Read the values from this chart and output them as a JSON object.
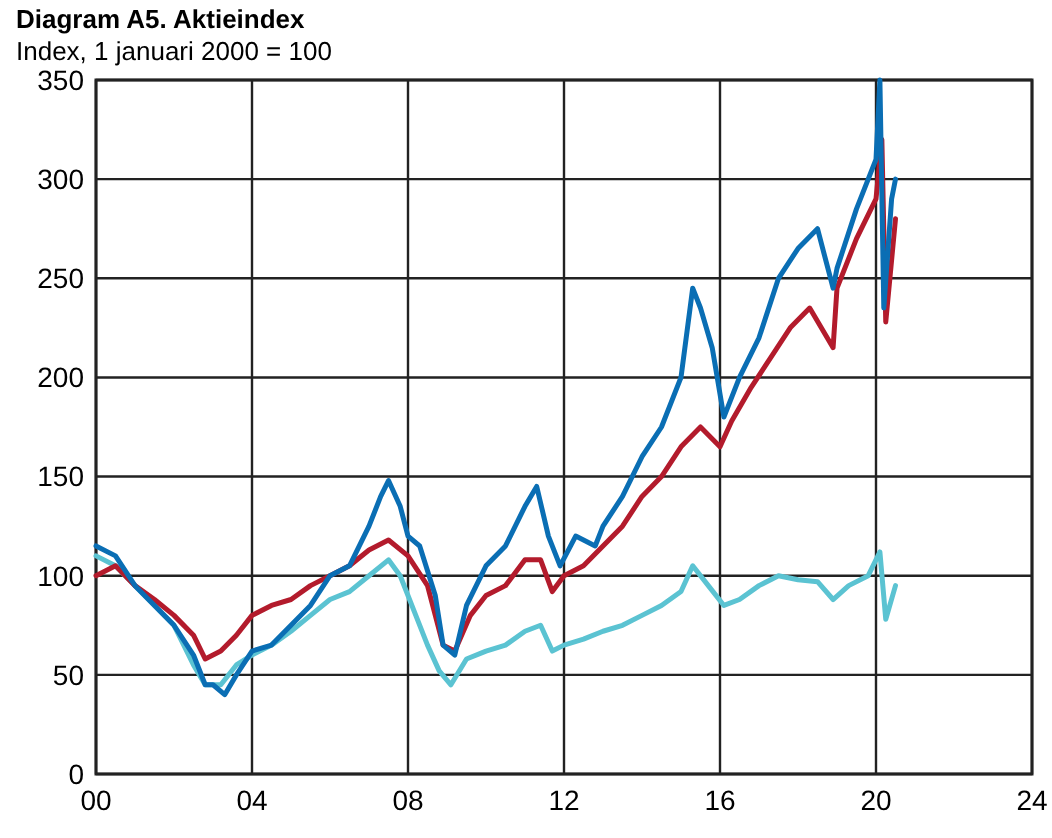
{
  "chart_data": {
    "type": "line",
    "title": "Diagram A5. Aktieindex",
    "subtitle": "Index, 1 januari 2000 = 100",
    "xlim": [
      0,
      24
    ],
    "xticks": [
      {
        "value": 0,
        "label": "00"
      },
      {
        "value": 4,
        "label": "04"
      },
      {
        "value": 8,
        "label": "08"
      },
      {
        "value": 12,
        "label": "12"
      },
      {
        "value": 16,
        "label": "16"
      },
      {
        "value": 20,
        "label": "20"
      },
      {
        "value": 24,
        "label": "24"
      }
    ],
    "ylim": [
      0,
      350
    ],
    "yticks": [
      0,
      50,
      100,
      150,
      200,
      250,
      300,
      350
    ],
    "grid": true,
    "series": [
      {
        "color": "#5bc3d2",
        "x": [
          0,
          0.5,
          1,
          1.5,
          2,
          2.5,
          2.8,
          3.2,
          3.6,
          4,
          4.5,
          5,
          5.5,
          6,
          6.5,
          7,
          7.5,
          7.8,
          8.2,
          8.5,
          8.8,
          9.1,
          9.5,
          10,
          10.5,
          11,
          11.4,
          11.7,
          12,
          12.5,
          13,
          13.5,
          14,
          14.5,
          15,
          15.3,
          15.7,
          16.1,
          16.5,
          17,
          17.5,
          18,
          18.5,
          18.9,
          19.3,
          19.8,
          20.1,
          20.25,
          20.5
        ],
        "values": [
          110,
          105,
          95,
          85,
          75,
          55,
          45,
          45,
          55,
          60,
          65,
          72,
          80,
          88,
          92,
          100,
          108,
          100,
          80,
          65,
          52,
          45,
          58,
          62,
          65,
          72,
          75,
          62,
          65,
          68,
          72,
          75,
          80,
          85,
          92,
          105,
          95,
          85,
          88,
          95,
          100,
          98,
          97,
          88,
          95,
          100,
          112,
          78,
          95
        ]
      },
      {
        "color": "#b31b2c",
        "x": [
          0,
          0.5,
          1,
          1.5,
          2,
          2.5,
          2.8,
          3.2,
          3.6,
          4,
          4.5,
          5,
          5.5,
          6,
          6.5,
          7,
          7.5,
          8,
          8.5,
          8.9,
          9.2,
          9.6,
          10,
          10.5,
          11,
          11.4,
          11.7,
          12,
          12.5,
          13,
          13.5,
          14,
          14.5,
          15,
          15.5,
          16,
          16.3,
          16.8,
          17.3,
          17.8,
          18.3,
          18.9,
          19,
          19.5,
          20,
          20.15,
          20.25,
          20.5
        ],
        "values": [
          100,
          105,
          95,
          88,
          80,
          70,
          58,
          62,
          70,
          80,
          85,
          88,
          95,
          100,
          105,
          113,
          118,
          110,
          95,
          65,
          62,
          80,
          90,
          95,
          108,
          108,
          92,
          100,
          105,
          115,
          125,
          140,
          150,
          165,
          175,
          165,
          178,
          195,
          210,
          225,
          235,
          215,
          245,
          270,
          290,
          320,
          228,
          280
        ]
      },
      {
        "color": "#0a6eb4",
        "x": [
          0,
          0.5,
          1,
          1.5,
          2,
          2.5,
          2.8,
          3,
          3.3,
          3.6,
          4,
          4.5,
          5,
          5.5,
          6,
          6.5,
          7,
          7.3,
          7.5,
          7.8,
          8,
          8.3,
          8.7,
          8.9,
          9.2,
          9.5,
          10,
          10.5,
          11,
          11.3,
          11.6,
          11.9,
          12.3,
          12.8,
          13,
          13.5,
          14,
          14.5,
          15,
          15.3,
          15.5,
          15.8,
          16.1,
          16.5,
          17,
          17.5,
          18,
          18.5,
          18.9,
          19,
          19.5,
          20,
          20.1,
          20.2,
          20.4,
          20.5
        ],
        "values": [
          115,
          110,
          95,
          85,
          75,
          60,
          45,
          45,
          40,
          50,
          62,
          65,
          75,
          85,
          100,
          105,
          125,
          140,
          148,
          135,
          120,
          115,
          90,
          65,
          60,
          85,
          105,
          115,
          135,
          145,
          120,
          105,
          120,
          115,
          125,
          140,
          160,
          175,
          200,
          245,
          235,
          215,
          180,
          200,
          220,
          250,
          265,
          275,
          245,
          255,
          285,
          310,
          350,
          235,
          290,
          300
        ]
      }
    ]
  }
}
